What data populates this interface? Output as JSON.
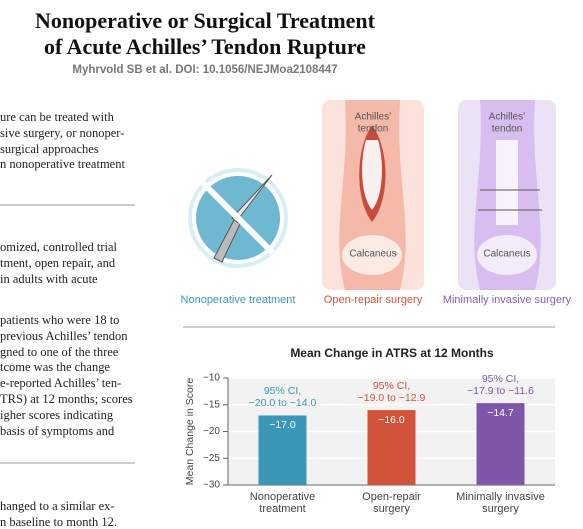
{
  "header": {
    "title_lines": [
      "Nonoperative or Surgical Treatment",
      "of Acute Achilles’ Tendon Rupture"
    ],
    "subtitle": "Myhrvold SB et al. DOI: 10.1056/NEJMoa2108447"
  },
  "body_blocks": [
    [
      "ure can be treated with",
      "sive surgery, or nonoper-",
      "surgical approaches",
      "n nonoperative treatment"
    ],
    [
      "omized, controlled trial",
      "tment, open repair, and",
      "in adults with acute"
    ],
    [
      "patients who were 18 to",
      "previous Achilles’ tendon",
      "gned to one of the three",
      "tcome was the change",
      "e-reported Achilles’ ten-",
      "TRS) at 12 months; scores",
      "igher scores indicating",
      "basis of symptoms and"
    ],
    [
      "hanged to a similar ex-",
      "n baseline to month 12."
    ]
  ],
  "illustrations": [
    {
      "label": "Nonoperative treatment",
      "color": "#3a97b8"
    },
    {
      "label": "Open-repair surgery",
      "color": "#d0533a",
      "callouts": [
        "Achilles’",
        "tendon",
        "Calcaneus"
      ]
    },
    {
      "label": "Minimally invasive surgery",
      "color": "#8a5db5",
      "callouts": [
        "Achilles’",
        "tendon",
        "Calcaneus"
      ]
    }
  ],
  "chart_data": {
    "type": "bar",
    "title": "Mean Change in ATRS at 12 Months",
    "y_label": "Mean Change in Score",
    "categories": [
      "Nonoperative treatment",
      "Open-repair surgery",
      "Minimally invasive surgery"
    ],
    "values": [
      -17.0,
      -16.0,
      -14.7
    ],
    "value_labels": [
      "−17.0",
      "−16.0",
      "−14.7"
    ],
    "colors": [
      "#3a97b8",
      "#d0533a",
      "#7e57a8"
    ],
    "ci_labels": [
      [
        "95% CI,",
        "−20.0 to −14.0"
      ],
      [
        "95% CI,",
        "−19.0 to −12.9"
      ],
      [
        "95% CI,",
        "−17.9 to −11.6"
      ]
    ],
    "ylim": [
      -30,
      -10
    ],
    "yticks": [
      {
        "value": -10,
        "label": "−10"
      },
      {
        "value": -15,
        "label": "−15"
      },
      {
        "value": -20,
        "label": "−20"
      },
      {
        "value": -25,
        "label": "−25"
      },
      {
        "value": -30,
        "label": "−30"
      }
    ],
    "grid": true
  }
}
